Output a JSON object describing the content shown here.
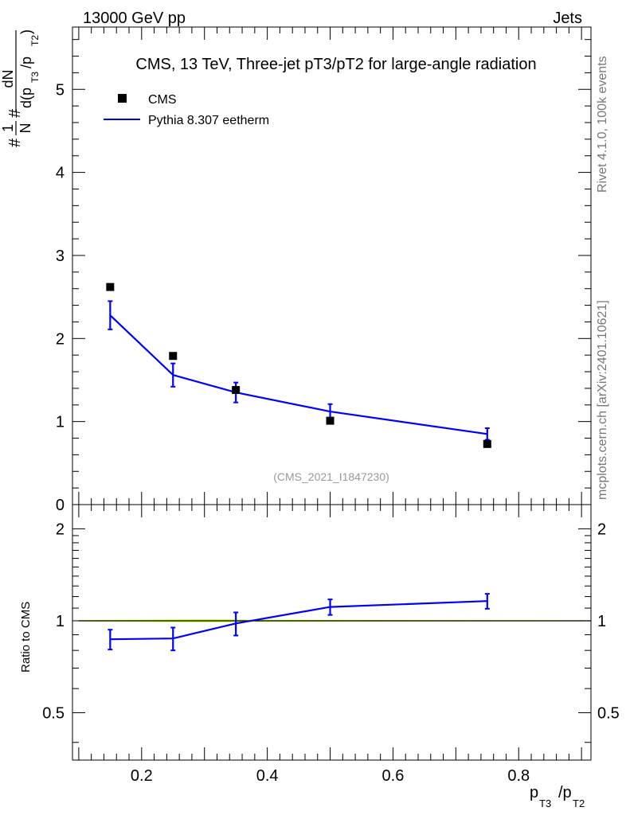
{
  "header": {
    "left": "13000 GeV pp",
    "right": "Jets"
  },
  "side": {
    "rivet": "Rivet 4.1.0,  100k events",
    "source": "mcplots.cern.ch [arXiv:2401.10621]"
  },
  "colors": {
    "data": "#000000",
    "mc": "#0000ff",
    "band": "#ccff33",
    "frame": "#000000",
    "watermark": "#999999"
  },
  "chart_data": [
    {
      "type": "scatter",
      "panel": "main",
      "title": "CMS, 13 TeV, Three-jet pT3/pT2 for large-angle radiation",
      "ylabel": {
        "prefix": "#",
        "frac1_num": "1",
        "frac1_den": "N",
        "mid": "#",
        "frac2_num": "dN",
        "frac2_den": "d(p",
        "sub1": "T3",
        "sep": "/p",
        "sub2": "T2",
        "close": ")"
      },
      "watermark": "(CMS_2021_I1847230)",
      "legend": [
        {
          "label": "CMS",
          "marker": "square"
        },
        {
          "label": "Pythia 8.307 eetherm",
          "marker": "line"
        }
      ],
      "legend_position": "top-left",
      "xlim": [
        0.09,
        0.915
      ],
      "ylim": [
        0,
        5.75
      ],
      "yticks": [
        0,
        1,
        2,
        3,
        4,
        5
      ],
      "ytick_labels": [
        "0",
        "1",
        "2",
        "3",
        "4",
        "5"
      ],
      "yminor_step": 0.2,
      "series": [
        {
          "name": "CMS",
          "x": [
            0.15,
            0.25,
            0.35,
            0.5,
            0.75
          ],
          "y": [
            2.62,
            1.79,
            1.38,
            1.01,
            0.73
          ]
        },
        {
          "name": "Pythia 8.307 eetherm",
          "x": [
            0.15,
            0.25,
            0.35,
            0.5,
            0.75
          ],
          "y": [
            2.28,
            1.56,
            1.35,
            1.12,
            0.85
          ],
          "err": [
            0.17,
            0.14,
            0.12,
            0.09,
            0.07
          ]
        }
      ]
    },
    {
      "type": "line",
      "panel": "ratio",
      "ylabel": "Ratio to CMS",
      "xlabel": {
        "p1": "p",
        "s1": "T3",
        "sep": "/p",
        "s2": "T2"
      },
      "xlim": [
        0.09,
        0.915
      ],
      "xticks": [
        0.2,
        0.4,
        0.6,
        0.8
      ],
      "xtick_labels": [
        "0.2",
        "0.4",
        "0.6",
        "0.8"
      ],
      "xminor_step": 0.02,
      "ylim": [
        0.35,
        2.4
      ],
      "yscale": "log",
      "yticks": [
        0.5,
        1,
        2
      ],
      "ytick_labels": [
        "0.5",
        "1",
        "2"
      ],
      "yminor_ticks": [
        0.4,
        0.6,
        0.7,
        0.8,
        0.9,
        1.1,
        1.2,
        1.3,
        1.4,
        1.5,
        1.6,
        1.7,
        1.8,
        1.9
      ],
      "reference": 1,
      "band": {
        "x": [
          0.1,
          0.2,
          0.3,
          0.4,
          0.6,
          0.9
        ],
        "half_width": [
          0.005,
          0.008,
          0.012,
          0.008,
          0.006,
          0.004
        ]
      },
      "series": [
        {
          "name": "Pythia 8.307 eetherm",
          "x": [
            0.15,
            0.25,
            0.35,
            0.5,
            0.75
          ],
          "y": [
            0.87,
            0.875,
            0.98,
            1.11,
            1.16
          ],
          "err": [
            0.065,
            0.075,
            0.085,
            0.065,
            0.065
          ]
        }
      ]
    }
  ]
}
